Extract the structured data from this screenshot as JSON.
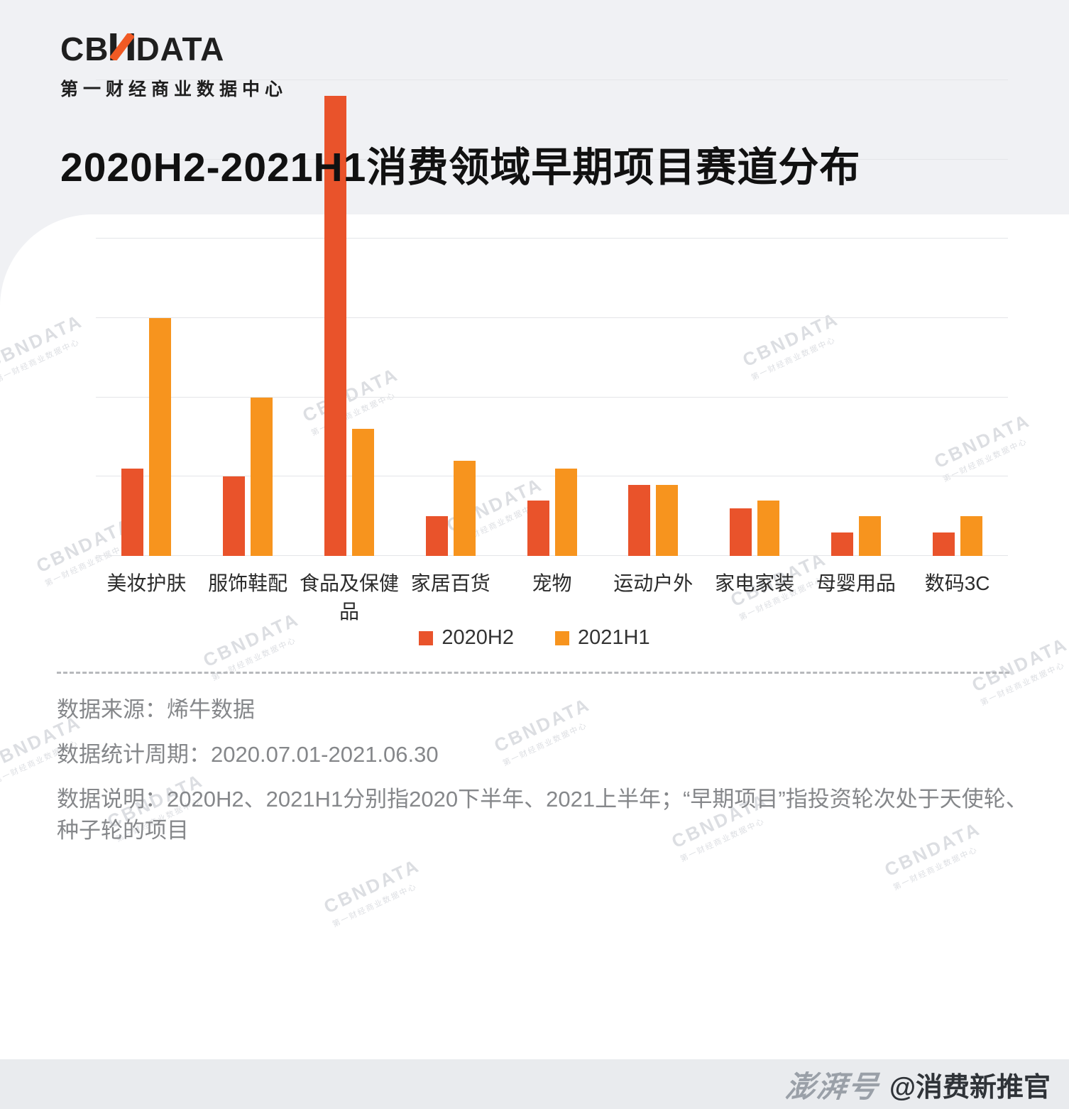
{
  "header": {
    "logo_left": "CB",
    "logo_right": "DATA",
    "logo_subtitle": "第一财经商业数据中心",
    "title": "2020H2-2021H1消费领域早期项目赛道分布"
  },
  "chart_data": {
    "type": "bar",
    "title": "2020H2-2021H1消费领域早期项目赛道分布",
    "categories": [
      "美妆护肤",
      "服饰鞋配",
      "食品及保健品",
      "家居百货",
      "宠物",
      "运动户外",
      "家电家装",
      "母婴用品",
      "数码3C"
    ],
    "series": [
      {
        "name": "2020H2",
        "color": "#E9532B",
        "values": [
          11,
          10,
          58,
          5,
          7,
          9,
          6,
          3,
          3
        ]
      },
      {
        "name": "2021H1",
        "color": "#F7941E",
        "values": [
          30,
          20,
          16,
          12,
          11,
          9,
          7,
          5,
          5
        ]
      }
    ],
    "xlabel": "",
    "ylabel": "",
    "ylim": [
      0,
      60
    ],
    "grid_step": 10,
    "grid": true,
    "legend_position": "bottom"
  },
  "notes": {
    "source": "数据来源：烯牛数据",
    "period": "数据统计周期：2020.07.01-2021.06.30",
    "description": "数据说明：2020H2、2021H1分别指2020下半年、2021上半年；“早期项目”指投资轮次处于天使轮、种子轮的项目"
  },
  "watermark": {
    "brand": "CBNDATA",
    "subtitle": "第一财经商业数据中心"
  },
  "footer": {
    "platform": "澎湃号",
    "account": "@消费新推官"
  }
}
